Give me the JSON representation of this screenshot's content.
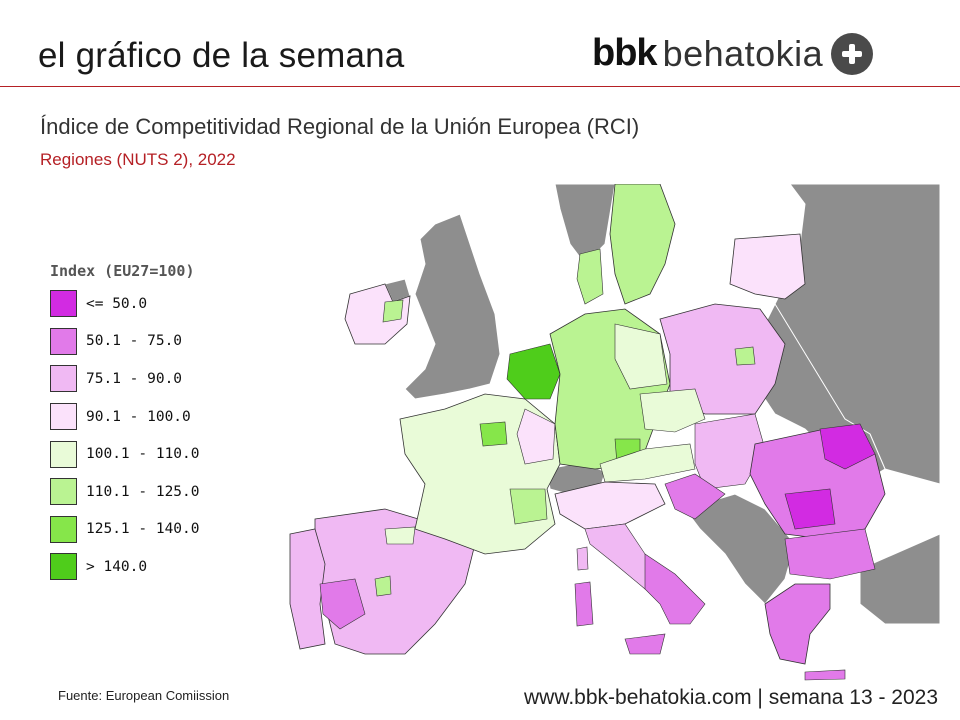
{
  "header": {
    "title": "el gráfico de la semana",
    "brand_bold": "bbk",
    "brand_name": "behatokia",
    "brand_icon": "plus-circle-icon"
  },
  "chart": {
    "title": "Índice de Competitividad Regional de la Unión Europea (RCI)",
    "subtitle": "Regiones (NUTS 2), 2022"
  },
  "legend": {
    "title": "Index (EU27=100)",
    "items": [
      {
        "label": "<= 50.0",
        "color": "#d22be2"
      },
      {
        "label": "50.1 - 75.0",
        "color": "#e17ae9"
      },
      {
        "label": "75.1 - 90.0",
        "color": "#f0b9f3"
      },
      {
        "label": "90.1 - 100.0",
        "color": "#fbe2fb"
      },
      {
        "label": "100.1 - 110.0",
        "color": "#e9fbd8"
      },
      {
        "label": "110.1 - 125.0",
        "color": "#baf392"
      },
      {
        "label": "125.1 - 140.0",
        "color": "#86e64a"
      },
      {
        "label": "> 140.0",
        "color": "#4fcd1b"
      }
    ]
  },
  "map_colors": {
    "sea": "#ffffff",
    "non_eu": "#8e8e8e",
    "border": "#333333"
  },
  "footer": {
    "source": "Fuente: European Comiission",
    "website": "www.bbk-behatokia.com | semana 13 - 2023"
  }
}
